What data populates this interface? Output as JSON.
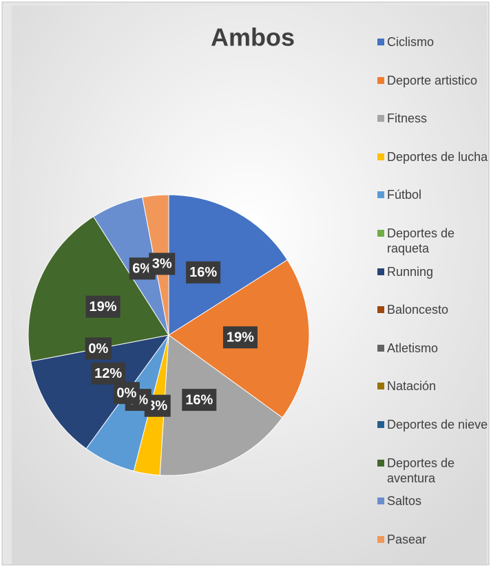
{
  "chart_data": {
    "type": "pie",
    "title": "Ambos",
    "categories": [
      "Ciclismo",
      "Deporte artistico",
      "Fitness",
      "Deportes de lucha",
      "Fútbol",
      "Deportes de raqueta",
      "Running",
      "Baloncesto",
      "Atletismo",
      "Natación",
      "Deportes de nieve",
      "Deportes de aventura",
      "Saltos",
      "Pasear"
    ],
    "values": [
      16,
      19,
      16,
      3,
      6,
      0,
      12,
      0,
      0,
      0,
      0,
      19,
      6,
      3
    ],
    "value_labels": [
      "16%",
      "19%",
      "16%",
      "3%",
      "6%",
      "0%",
      "12%",
      "0%",
      "0%",
      "0%",
      "0%",
      "19%",
      "6%",
      "3%"
    ],
    "colors": [
      "#4472c4",
      "#ed7d31",
      "#a5a5a5",
      "#ffc000",
      "#5b9bd5",
      "#70ad47",
      "#264478",
      "#9e480e",
      "#636363",
      "#997300",
      "#255e91",
      "#43682b",
      "#698ed0",
      "#f1975a"
    ],
    "legend": "right"
  }
}
